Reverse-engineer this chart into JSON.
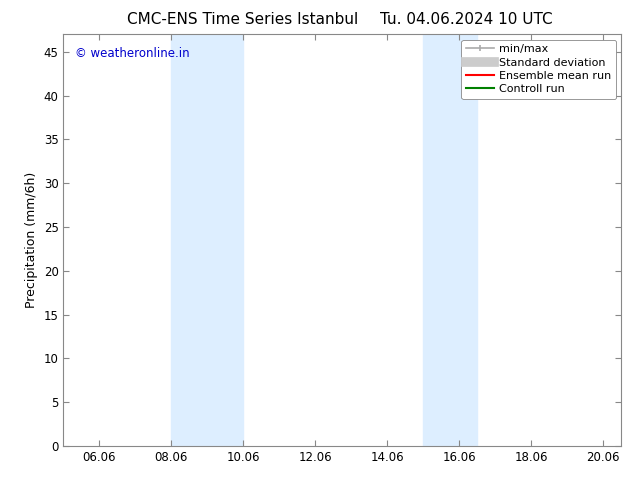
{
  "title_left": "CMC-ENS Time Series Istanbul",
  "title_right": "Tu. 04.06.2024 10 UTC",
  "ylabel": "Precipitation (mm/6h)",
  "watermark": "© weatheronline.in",
  "xlim": [
    5.0,
    20.5
  ],
  "ylim": [
    0,
    47
  ],
  "yticks": [
    0,
    5,
    10,
    15,
    20,
    25,
    30,
    35,
    40,
    45
  ],
  "xtick_labels": [
    "06.06",
    "08.06",
    "10.06",
    "12.06",
    "14.06",
    "16.06",
    "18.06",
    "20.06"
  ],
  "xtick_positions": [
    6,
    8,
    10,
    12,
    14,
    16,
    18,
    20
  ],
  "shaded_bands": [
    {
      "xmin": 8.0,
      "xmax": 10.0
    },
    {
      "xmin": 15.0,
      "xmax": 16.5
    }
  ],
  "shade_color": "#ddeeff",
  "background_color": "#ffffff",
  "legend_items": [
    {
      "label": "min/max",
      "color": "#aaaaaa",
      "lw": 1.2,
      "style": "line_with_caps"
    },
    {
      "label": "Standard deviation",
      "color": "#cccccc",
      "lw": 7,
      "style": "line"
    },
    {
      "label": "Ensemble mean run",
      "color": "#ff0000",
      "lw": 1.5,
      "style": "line"
    },
    {
      "label": "Controll run",
      "color": "#008000",
      "lw": 1.5,
      "style": "line"
    }
  ],
  "title_fontsize": 11,
  "tick_fontsize": 8.5,
  "ylabel_fontsize": 9,
  "legend_fontsize": 8,
  "watermark_color": "#0000cc",
  "watermark_fontsize": 8.5,
  "spine_color": "#888888"
}
